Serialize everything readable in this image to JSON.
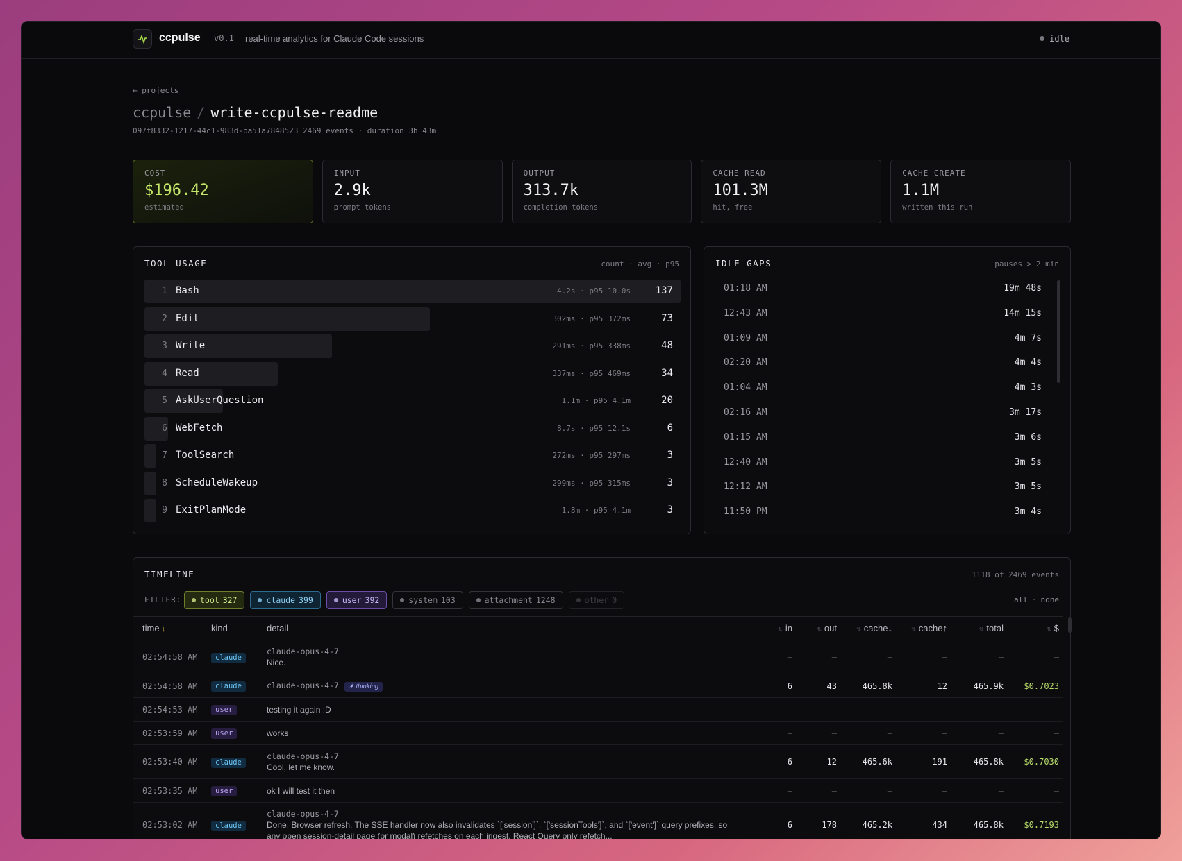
{
  "header": {
    "app": "ccpulse",
    "version": "v0.1",
    "tagline": "real-time analytics for Claude Code sessions",
    "status": "idle"
  },
  "breadcrumb": "← projects",
  "title": {
    "project": "ccpulse",
    "separator": "/",
    "session": "write-ccpulse-readme"
  },
  "meta": {
    "session_id": "097f8332-1217-44c1-983d-ba51a7848523",
    "events": "2469 events",
    "separator": "·",
    "duration": "duration 3h 43m"
  },
  "cards": [
    {
      "label": "COST",
      "value": "$196.42",
      "sub": "estimated"
    },
    {
      "label": "INPUT",
      "value": "2.9k",
      "sub": "prompt tokens"
    },
    {
      "label": "OUTPUT",
      "value": "313.7k",
      "sub": "completion tokens"
    },
    {
      "label": "CACHE READ",
      "value": "101.3M",
      "sub": "hit, free"
    },
    {
      "label": "CACHE CREATE",
      "value": "1.1M",
      "sub": "written this run"
    }
  ],
  "tool_usage": {
    "title": "TOOL USAGE",
    "legend": "count · avg · p95",
    "rows": [
      {
        "rank": 1,
        "name": "Bash",
        "timing": "4.2s · p95 10.0s",
        "count": 137
      },
      {
        "rank": 2,
        "name": "Edit",
        "timing": "302ms · p95 372ms",
        "count": 73
      },
      {
        "rank": 3,
        "name": "Write",
        "timing": "291ms · p95 338ms",
        "count": 48
      },
      {
        "rank": 4,
        "name": "Read",
        "timing": "337ms · p95 469ms",
        "count": 34
      },
      {
        "rank": 5,
        "name": "AskUserQuestion",
        "timing": "1.1m · p95 4.1m",
        "count": 20
      },
      {
        "rank": 6,
        "name": "WebFetch",
        "timing": "8.7s · p95 12.1s",
        "count": 6
      },
      {
        "rank": 7,
        "name": "ToolSearch",
        "timing": "272ms · p95 297ms",
        "count": 3
      },
      {
        "rank": 8,
        "name": "ScheduleWakeup",
        "timing": "299ms · p95 315ms",
        "count": 3
      },
      {
        "rank": 9,
        "name": "ExitPlanMode",
        "timing": "1.8m · p95 4.1m",
        "count": 3
      }
    ]
  },
  "idle_gaps": {
    "title": "IDLE GAPS",
    "legend": "pauses > 2 min",
    "rows": [
      {
        "time": "01:18 AM",
        "gap": "19m 48s"
      },
      {
        "time": "12:43 AM",
        "gap": "14m 15s"
      },
      {
        "time": "01:09 AM",
        "gap": "4m 7s"
      },
      {
        "time": "02:20 AM",
        "gap": "4m 4s"
      },
      {
        "time": "01:04 AM",
        "gap": "4m 3s"
      },
      {
        "time": "02:16 AM",
        "gap": "3m 17s"
      },
      {
        "time": "01:15 AM",
        "gap": "3m 6s"
      },
      {
        "time": "12:40 AM",
        "gap": "3m 5s"
      },
      {
        "time": "12:12 AM",
        "gap": "3m 5s"
      },
      {
        "time": "11:50 PM",
        "gap": "3m 4s"
      }
    ]
  },
  "timeline": {
    "title": "TIMELINE",
    "count": "1118 of 2469 events",
    "filter_label": "FILTER:",
    "filters": [
      {
        "name": "tool",
        "count": 327
      },
      {
        "name": "claude",
        "count": 399
      },
      {
        "name": "user",
        "count": 392
      },
      {
        "name": "system",
        "count": 103
      },
      {
        "name": "attachment",
        "count": 1248
      },
      {
        "name": "other",
        "count": 0
      }
    ],
    "all": "all",
    "separator": "·",
    "none": "none",
    "columns": [
      {
        "label": "time",
        "sort": "↓"
      },
      {
        "label": "kind"
      },
      {
        "label": "detail"
      },
      {
        "label": "in"
      },
      {
        "label": "out"
      },
      {
        "label": "cache↓"
      },
      {
        "label": "cache↑"
      },
      {
        "label": "total"
      },
      {
        "label": "$"
      }
    ],
    "rows": [
      {
        "time": "02:54:58 AM",
        "kind": "claude",
        "model": "claude-opus-4-7",
        "text": "Nice.",
        "in": "—",
        "out": "—",
        "cache_read": "—",
        "cache_create": "—",
        "total": "—",
        "cost": "—"
      },
      {
        "time": "02:54:58 AM",
        "kind": "claude",
        "model": "claude-opus-4-7",
        "badge": "✶ thinking",
        "in": 6,
        "out": 43,
        "cache_read": "465.8k",
        "cache_create": 12,
        "total": "465.9k",
        "cost": "$0.7023"
      },
      {
        "time": "02:54:53 AM",
        "kind": "user",
        "text": "testing it again :D",
        "in": "—",
        "out": "—",
        "cache_read": "—",
        "cache_create": "—",
        "total": "—",
        "cost": "—"
      },
      {
        "time": "02:53:59 AM",
        "kind": "user",
        "text": "works",
        "in": "—",
        "out": "—",
        "cache_read": "—",
        "cache_create": "—",
        "total": "—",
        "cost": "—"
      },
      {
        "time": "02:53:40 AM",
        "kind": "claude",
        "model": "claude-opus-4-7",
        "text": "Cool, let me know.",
        "in": 6,
        "out": 12,
        "cache_read": "465.6k",
        "cache_create": 191,
        "total": "465.8k",
        "cost": "$0.7030"
      },
      {
        "time": "02:53:35 AM",
        "kind": "user",
        "text": "ok I will test it then",
        "in": "—",
        "out": "—",
        "cache_read": "—",
        "cache_create": "—",
        "total": "—",
        "cost": "—"
      },
      {
        "time": "02:53:02 AM",
        "kind": "claude",
        "model": "claude-opus-4-7",
        "text": "Done. Browser refresh. The SSE handler now also invalidates `['session']`, `['sessionTools']`, and `['event']` query prefixes, so any open session-detail page (or modal) refetches on each ingest. React Query only refetch...",
        "in": 6,
        "out": 178,
        "cache_read": "465.2k",
        "cache_create": 434,
        "total": "465.8k",
        "cost": "$0.7193"
      }
    ]
  }
}
